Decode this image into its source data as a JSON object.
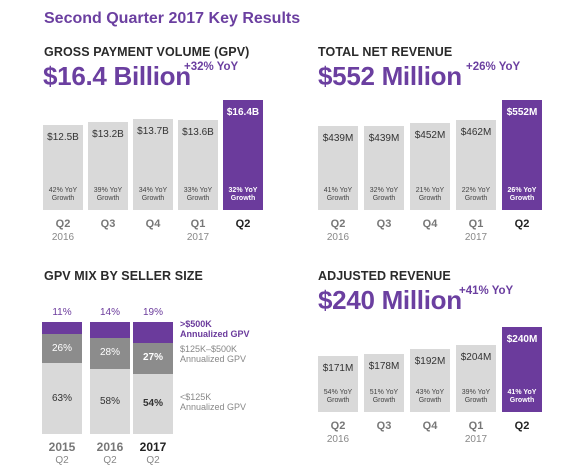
{
  "title": "Second Quarter 2017 Key Results",
  "colors": {
    "accent": "#6b3b9c",
    "bar": "#d9d9d9",
    "mid": "#8c8c8c"
  },
  "gpv": {
    "title": "GROSS PAYMENT VOLUME (GPV)",
    "value": "$16.4 Billion",
    "yoy": "+32% YoY"
  },
  "revenue": {
    "title": "TOTAL NET REVENUE",
    "value": "$552 Million",
    "yoy": "+26% YoY"
  },
  "mix": {
    "title": "GPV MIX BY SELLER SIZE"
  },
  "adjusted": {
    "title": "ADJUSTED REVENUE",
    "value": "$240 Million",
    "yoy": "+41% YoY"
  },
  "chart_data": [
    {
      "type": "bar",
      "title": "GROSS PAYMENT VOLUME (GPV)",
      "categories": [
        "Q2",
        "Q3",
        "Q4",
        "Q1",
        "Q2"
      ],
      "years": [
        "2016",
        "",
        "",
        "2017",
        ""
      ],
      "values": [
        12.5,
        13.2,
        13.7,
        13.6,
        16.4
      ],
      "labels": [
        "$12.5B",
        "$13.2B",
        "$13.7B",
        "$13.6B",
        "$16.4B"
      ],
      "growth": [
        "42% YoY\nGrowth",
        "39% YoY\nGrowth",
        "34% YoY\nGrowth",
        "33% YoY\nGrowth",
        "32% YoY\nGrowth"
      ],
      "highlight_index": 4
    },
    {
      "type": "bar",
      "title": "TOTAL NET REVENUE",
      "categories": [
        "Q2",
        "Q3",
        "Q4",
        "Q1",
        "Q2"
      ],
      "years": [
        "2016",
        "",
        "",
        "2017",
        ""
      ],
      "values": [
        439,
        439,
        452,
        462,
        552
      ],
      "labels": [
        "$439M",
        "$439M",
        "$452M",
        "$462M",
        "$552M"
      ],
      "growth": [
        "41% YoY\nGrowth",
        "32% YoY\nGrowth",
        "21% YoY\nGrowth",
        "22% YoY\nGrowth",
        "26% YoY\nGrowth"
      ],
      "highlight_index": 4
    },
    {
      "type": "bar",
      "stacked": true,
      "title": "GPV MIX BY SELLER SIZE",
      "categories": [
        "2015",
        "2016",
        "2017"
      ],
      "sub_categories": [
        "Q2",
        "Q2",
        "Q2"
      ],
      "series": [
        {
          "name": "<$125K\nAnnualized GPV",
          "values": [
            63,
            58,
            54
          ],
          "labels": [
            "63%",
            "58%",
            "54%"
          ]
        },
        {
          "name": "$125K–$500K\nAnnualized GPV",
          "values": [
            26,
            28,
            27
          ],
          "labels": [
            "26%",
            "28%",
            "27%"
          ]
        },
        {
          "name": ">$500K\nAnnualized GPV",
          "values": [
            11,
            14,
            19
          ],
          "labels": [
            "11%",
            "14%",
            "19%"
          ]
        }
      ],
      "highlight_index": 2
    },
    {
      "type": "bar",
      "title": "ADJUSTED REVENUE",
      "categories": [
        "Q2",
        "Q3",
        "Q4",
        "Q1",
        "Q2"
      ],
      "years": [
        "2016",
        "",
        "",
        "2017",
        ""
      ],
      "values": [
        171,
        178,
        192,
        204,
        240
      ],
      "labels": [
        "$171M",
        "$178M",
        "$192M",
        "$204M",
        "$240M"
      ],
      "growth": [
        "54% YoY\nGrowth",
        "51% YoY\nGrowth",
        "43% YoY\nGrowth",
        "39% YoY\nGrowth",
        "41% YoY\nGrowth"
      ],
      "highlight_index": 4
    }
  ]
}
